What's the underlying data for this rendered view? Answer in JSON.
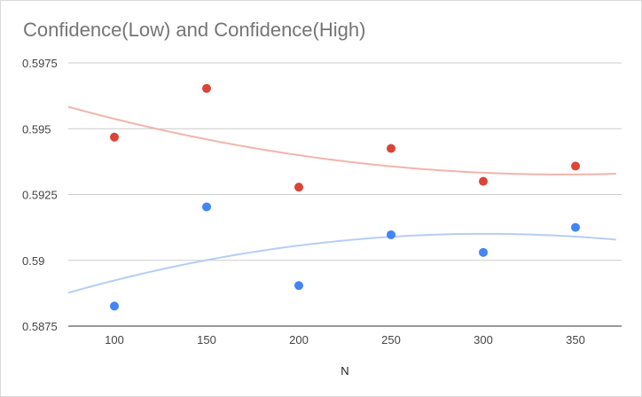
{
  "chart_data": {
    "type": "scatter",
    "title": "Confidence(Low) and Confidence(High)",
    "xlabel": "N",
    "ylabel": "",
    "xlim": [
      75,
      375
    ],
    "ylim": [
      0.5875,
      0.5975
    ],
    "x_ticks": [
      100,
      150,
      200,
      250,
      300,
      350
    ],
    "x_tick_labels": [
      "100",
      "150",
      "200",
      "250",
      "300",
      "350"
    ],
    "y_ticks": [
      0.5875,
      0.59,
      0.5925,
      0.595,
      0.5975
    ],
    "y_tick_labels": [
      "0.5875",
      "0.59",
      "0.5925",
      "0.595",
      "0.5975"
    ],
    "grid": true,
    "legend": "none",
    "series": [
      {
        "color": "#db4437",
        "trendline_color": "#f2b4ac",
        "x": [
          100,
          150,
          200,
          250,
          300,
          350
        ],
        "y": [
          0.59468,
          0.59653,
          0.59278,
          0.59425,
          0.593,
          0.59358
        ],
        "trendline": {
          "type": "polynomial",
          "degree": 2,
          "y": [
            0.59585,
            0.59422,
            0.59348,
            0.59328
          ]
        }
      },
      {
        "color": "#4285f4",
        "trendline_color": "#b6cdf7",
        "x": [
          100,
          150,
          200,
          250,
          300,
          350
        ],
        "y": [
          0.58826,
          0.59203,
          0.58904,
          0.59097,
          0.5903,
          0.59125
        ],
        "trendline": {
          "type": "polynomial",
          "degree": 2,
          "y": [
            0.58873,
            0.59042,
            0.59087,
            0.5908
          ]
        }
      }
    ]
  }
}
